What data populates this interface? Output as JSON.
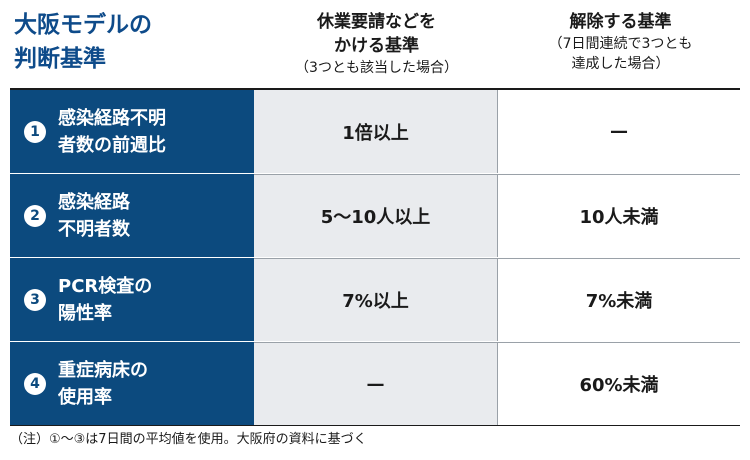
{
  "title": {
    "line1": "大阪モデルの",
    "line2": "判断基準"
  },
  "columns": {
    "request": {
      "line1": "休業要請などを",
      "line2": "かける基準",
      "sub": "（3つとも該当した場合）"
    },
    "release": {
      "line1": "解除する基準",
      "sub1": "（7日間連続で3つとも",
      "sub2": "達成した場合）"
    }
  },
  "rows": [
    {
      "num": "1",
      "label_line1": "感染経路不明",
      "label_line2": "者数の前週比",
      "request": "1倍以上",
      "release": "—"
    },
    {
      "num": "2",
      "label_line1": "感染経路",
      "label_line2": "不明者数",
      "request": "5〜10人以上",
      "release": "10人未満"
    },
    {
      "num": "3",
      "label_line1": "PCR検査の",
      "label_line2": "陽性率",
      "request": "7%以上",
      "release": "7%未満"
    },
    {
      "num": "4",
      "label_line1": "重症病床の",
      "label_line2": "使用率",
      "request": "—",
      "release": "60%未満"
    }
  ],
  "note": "（注）①〜③は7日間の平均値を使用。大阪府の資料に基づく",
  "colors": {
    "label_bg": "#0c4a7e",
    "title": "#0e4b8a",
    "request_bg": "#e9ebee"
  }
}
